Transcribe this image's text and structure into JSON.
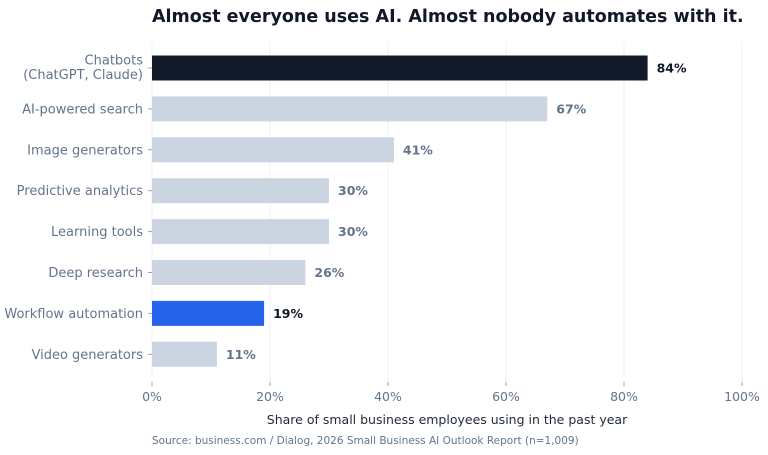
{
  "chart_data": {
    "type": "bar",
    "orientation": "horizontal",
    "title": "Almost everyone uses AI. Almost nobody automates with it.",
    "categories": [
      [
        "Chatbots",
        "(ChatGPT, Claude)"
      ],
      [
        "AI-powered search"
      ],
      [
        "Image generators"
      ],
      [
        "Predictive analytics"
      ],
      [
        "Learning tools"
      ],
      [
        "Deep research"
      ],
      [
        "Workflow automation"
      ],
      [
        "Video generators"
      ]
    ],
    "values": [
      84,
      67,
      41,
      30,
      30,
      26,
      19,
      11
    ],
    "value_labels": [
      "84%",
      "67%",
      "41%",
      "30%",
      "30%",
      "26%",
      "19%",
      "11%"
    ],
    "highlight": {
      "0": "dark",
      "6": "blue"
    },
    "xlabel": "Share of small business employees using in the past year",
    "xlim": [
      0,
      100
    ],
    "xticks": [
      0,
      20,
      40,
      60,
      80,
      100
    ],
    "xtick_labels": [
      "0%",
      "20%",
      "40%",
      "60%",
      "80%",
      "100%"
    ],
    "grid": true,
    "source": "Source: business.com / Dialog, 2026 Small Business AI Outlook Report (n=1,009)"
  },
  "colors": {
    "default_bar": "#cbd5e1",
    "dark_bar": "#111827",
    "blue_bar": "#2563eb",
    "muted_text": "#64748b",
    "strong_text": "#111827",
    "grid": "#eef0f3"
  }
}
